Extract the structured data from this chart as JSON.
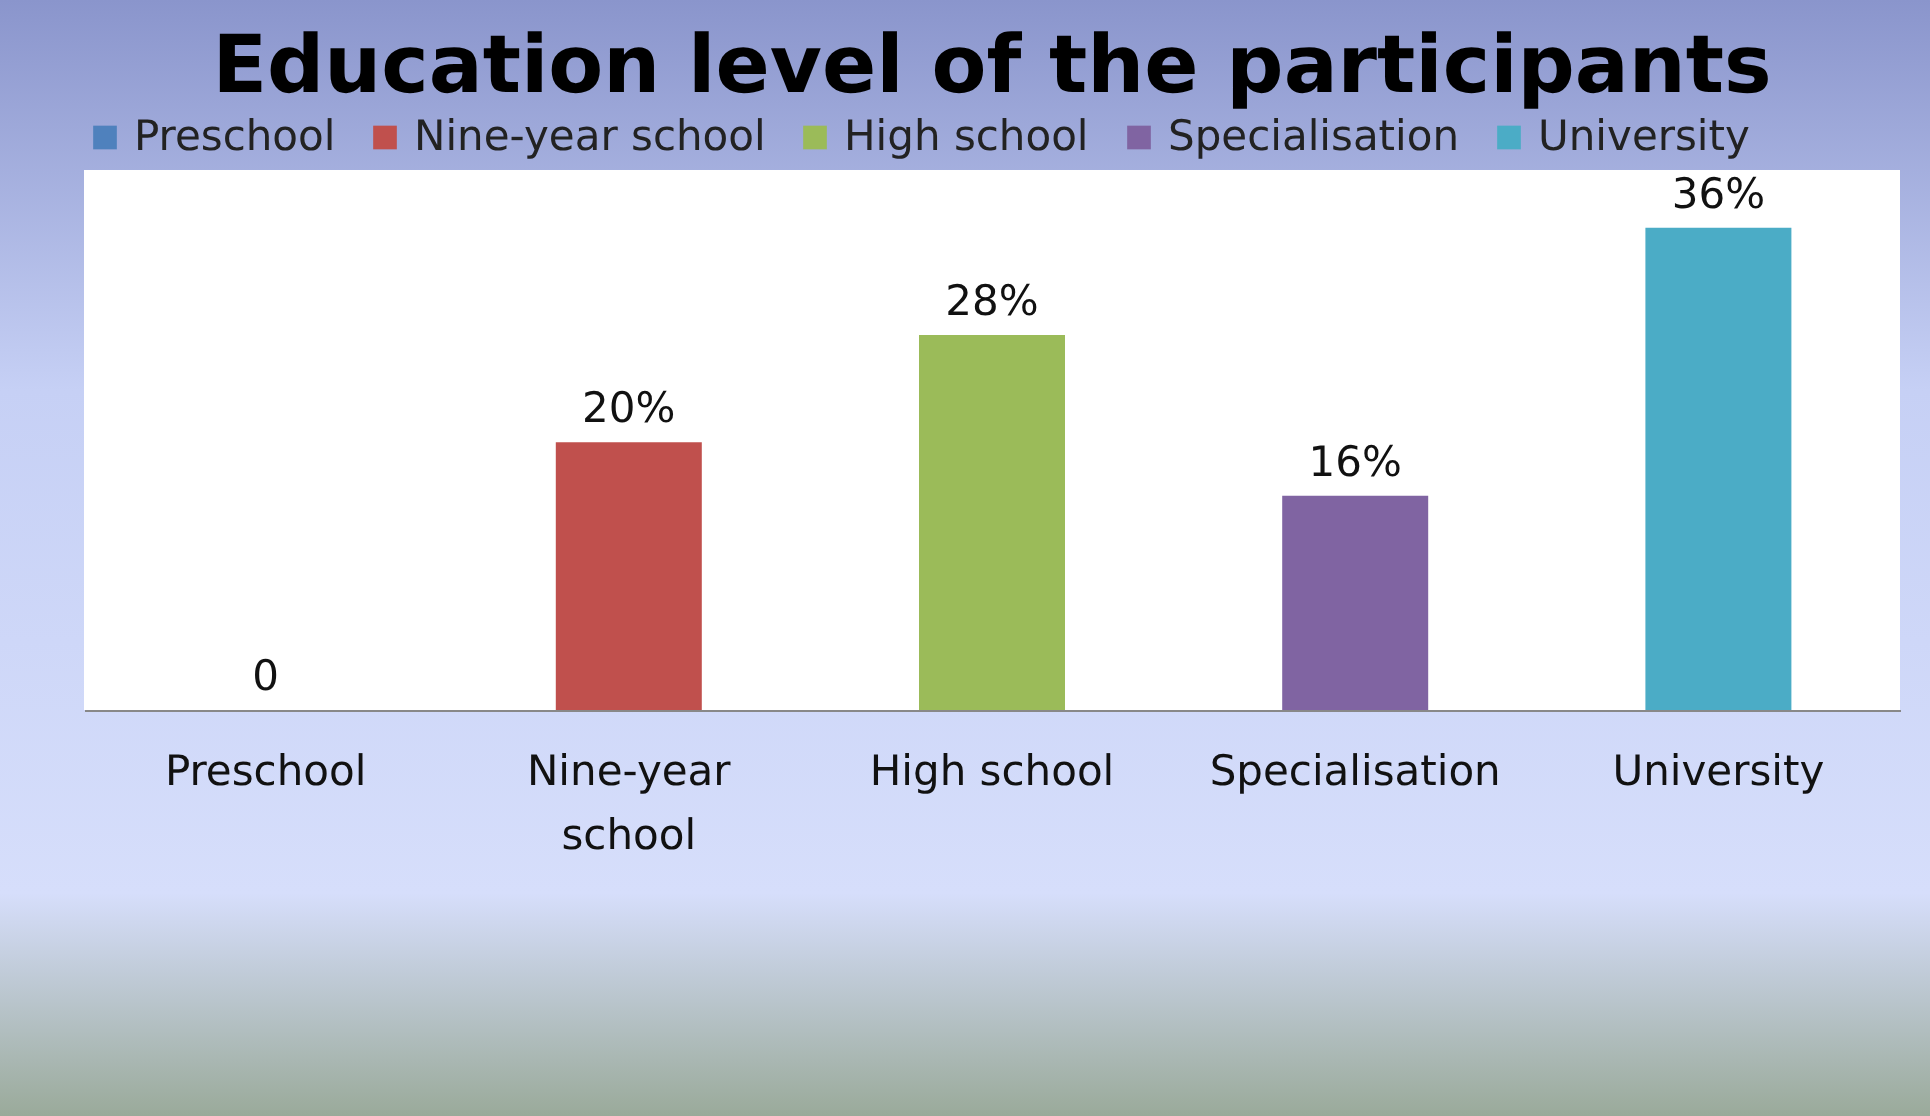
{
  "chart_data": {
    "type": "bar",
    "title": "Education level of the participants",
    "stacked": true,
    "categories": [
      "Preschool",
      "Nine-year school",
      "High school",
      "Specialisation",
      "University"
    ],
    "series": [
      {
        "name": "Preschool",
        "color": "#4f81bd",
        "values": [
          0,
          null,
          null,
          null,
          null
        ],
        "value_labels": [
          "0",
          null,
          null,
          null,
          null
        ]
      },
      {
        "name": "Nine-year school",
        "color": "#c0504d",
        "values": [
          null,
          20,
          null,
          null,
          null
        ],
        "value_labels": [
          null,
          "20%",
          null,
          null,
          null
        ]
      },
      {
        "name": "High school",
        "color": "#9bbb59",
        "values": [
          null,
          null,
          28,
          null,
          null
        ],
        "value_labels": [
          null,
          null,
          "28%",
          null,
          null
        ]
      },
      {
        "name": "Specialisation",
        "color": "#8064a2",
        "values": [
          null,
          null,
          null,
          16,
          null
        ],
        "value_labels": [
          null,
          null,
          null,
          "16%",
          null
        ]
      },
      {
        "name": "University",
        "color": "#4bacc6",
        "values": [
          null,
          null,
          null,
          null,
          36
        ],
        "value_labels": [
          null,
          null,
          null,
          null,
          "36%"
        ]
      }
    ],
    "legend": "top",
    "grid": false
  }
}
